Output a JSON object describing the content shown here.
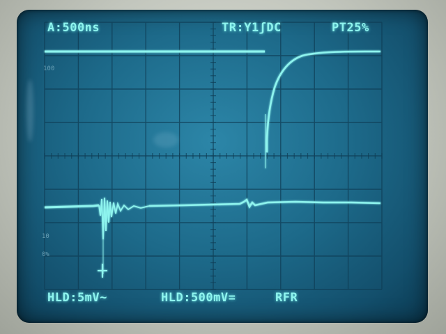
{
  "scope": {
    "timebase_label": "A:500ns",
    "trigger_label": "TR:Y1ʃDC",
    "pretrigger_label": "PT25%",
    "ch1_label": "HLD:5mV~",
    "ch2_label": "HLD:500mV=",
    "mode_label": "RFR",
    "graticule_mark_1": "10",
    "graticule_mark_2": "0%",
    "graticule_mark_3": "100"
  },
  "colors": {
    "trace": "#8ef4ee",
    "screen": "#1d6a8a",
    "grid": "#0f3d55"
  }
}
